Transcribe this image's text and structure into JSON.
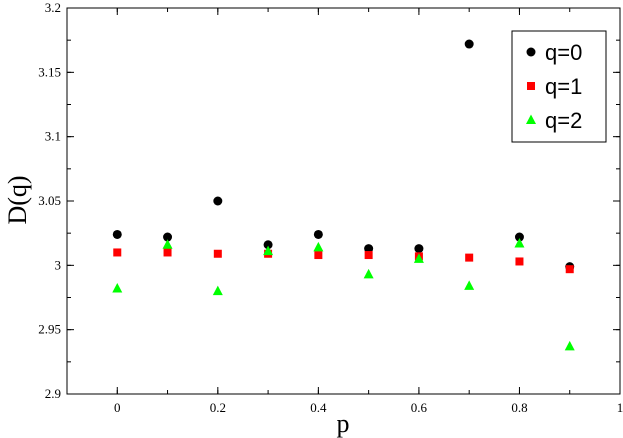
{
  "chart_data": {
    "type": "scatter",
    "title": "",
    "xlabel": "p",
    "ylabel": "D(q)",
    "xlim": [
      -0.1,
      1.0
    ],
    "ylim": [
      2.9,
      3.2
    ],
    "x_ticks": [
      0,
      0.2,
      0.4,
      0.6,
      0.8,
      1
    ],
    "x_tick_labels": [
      "0",
      "0.2",
      "0.4",
      "0.6",
      "0.8",
      "1"
    ],
    "y_ticks": [
      2.9,
      2.95,
      3.0,
      3.05,
      3.1,
      3.15,
      3.2
    ],
    "y_tick_labels": [
      "2.9",
      "2.95",
      "3",
      "3.05",
      "3.1",
      "3.15",
      "3.2"
    ],
    "grid": false,
    "legend_position": "top-right",
    "series": [
      {
        "name": "q=0",
        "marker": "circle",
        "color": "#000000",
        "x": [
          0,
          0.1,
          0.2,
          0.3,
          0.4,
          0.5,
          0.6,
          0.7,
          0.8,
          0.9
        ],
        "y": [
          3.024,
          3.022,
          3.05,
          3.016,
          3.024,
          3.013,
          3.013,
          3.172,
          3.022,
          2.999
        ]
      },
      {
        "name": "q=1",
        "marker": "square",
        "color": "#ff0000",
        "x": [
          0,
          0.1,
          0.2,
          0.3,
          0.4,
          0.5,
          0.6,
          0.7,
          0.8,
          0.9
        ],
        "y": [
          3.01,
          3.01,
          3.009,
          3.009,
          3.008,
          3.008,
          3.007,
          3.006,
          3.003,
          2.997
        ]
      },
      {
        "name": "q=2",
        "marker": "triangle",
        "color": "#00ff00",
        "x": [
          0,
          0.1,
          0.2,
          0.3,
          0.4,
          0.5,
          0.6,
          0.7,
          0.8,
          0.9
        ],
        "y": [
          2.982,
          3.016,
          2.98,
          3.011,
          3.014,
          2.993,
          3.005,
          2.984,
          3.017,
          2.937
        ]
      }
    ]
  }
}
